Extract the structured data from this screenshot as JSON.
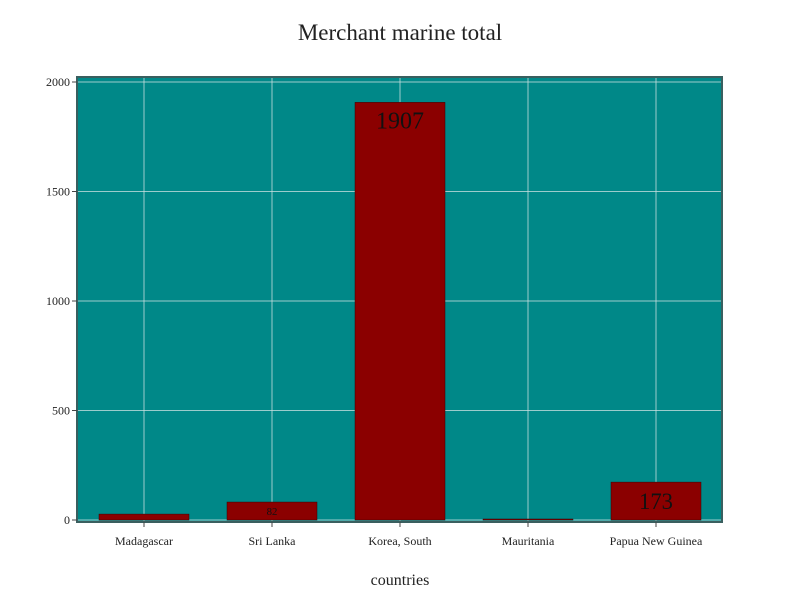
{
  "chart_data": {
    "type": "bar",
    "title": "Merchant marine total",
    "xlabel": "countries",
    "ylabel": "",
    "categories": [
      "Madagascar",
      "Sri Lanka",
      "Korea, South",
      "Mauritania",
      "Papua New Guinea"
    ],
    "values": [
      27,
      82,
      1907,
      3,
      173
    ],
    "data_labels": [
      "",
      "82",
      "1907",
      "",
      "173"
    ],
    "ylim": [
      0,
      2000
    ],
    "yticks": [
      0,
      500,
      1000,
      1500,
      2000
    ],
    "grid": true,
    "legend": "none",
    "colors": {
      "plot_background": "#008888",
      "bar": "#8b0000",
      "grid": "#cfe3e3",
      "frame": "#3a5f5f"
    }
  }
}
